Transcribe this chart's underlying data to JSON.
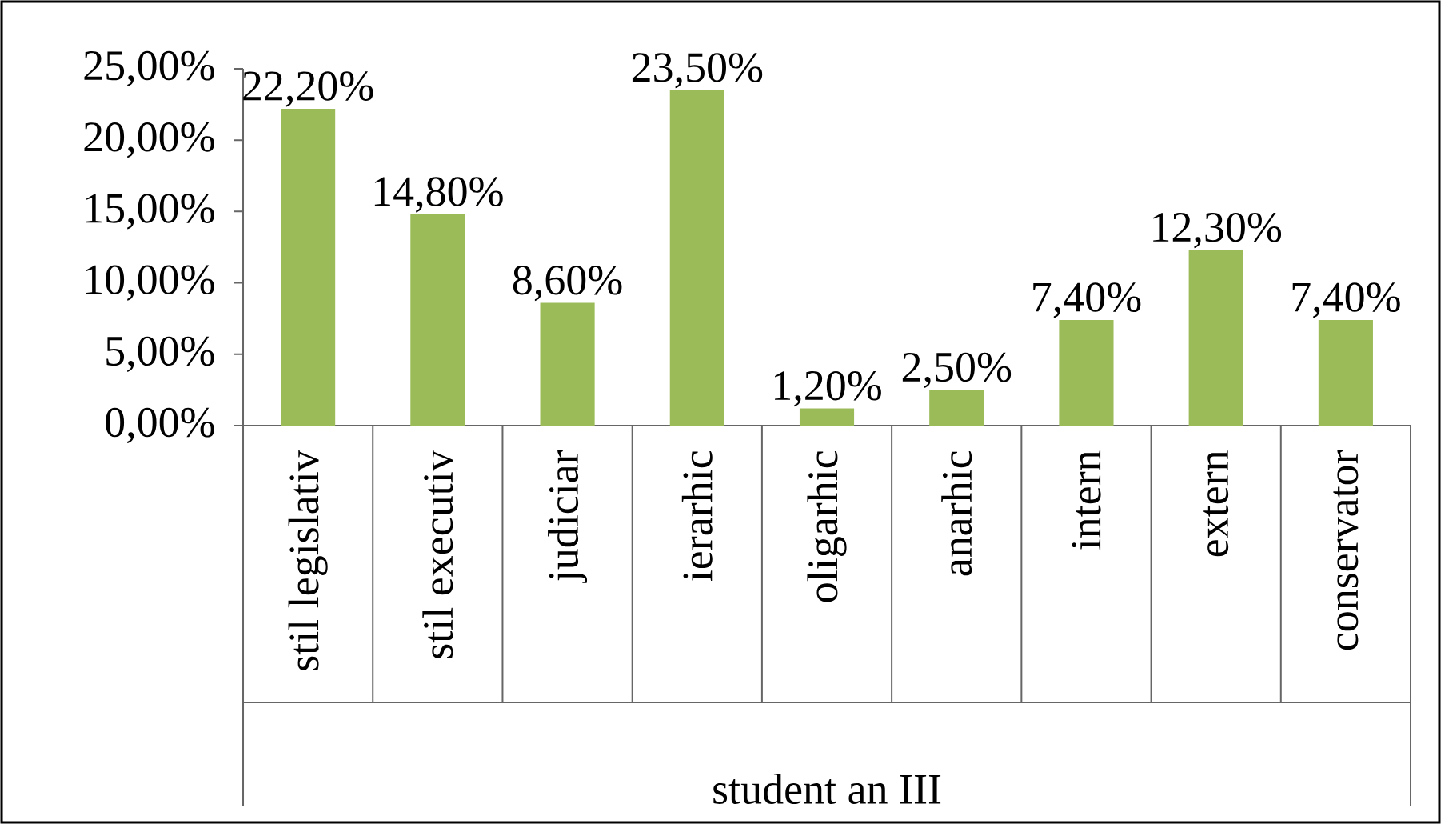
{
  "chart_data": {
    "type": "bar",
    "categories": [
      "stil legislativ",
      "stil executiv",
      "judiciar",
      "ierarhic",
      "oligarhic",
      "anarhic",
      "intern",
      "extern",
      "conservator"
    ],
    "values": [
      22.2,
      14.8,
      8.6,
      23.5,
      1.2,
      2.5,
      7.4,
      12.3,
      7.4
    ],
    "value_labels": [
      "22,20%",
      "14,80%",
      "8,60%",
      "23,50%",
      "1,20%",
      "2,50%",
      "7,40%",
      "12,30%",
      "7,40%"
    ],
    "color": "#9bbb59",
    "xlabel": "student an III",
    "ylim": [
      0,
      25
    ],
    "yticks": [
      {
        "value": 0,
        "label": "0,00%"
      },
      {
        "value": 5,
        "label": "5,00%"
      },
      {
        "value": 10,
        "label": "10,00%"
      },
      {
        "value": 15,
        "label": "15,00%"
      },
      {
        "value": 20,
        "label": "20,00%"
      },
      {
        "value": 25,
        "label": "25,00%"
      }
    ],
    "grid": false
  }
}
